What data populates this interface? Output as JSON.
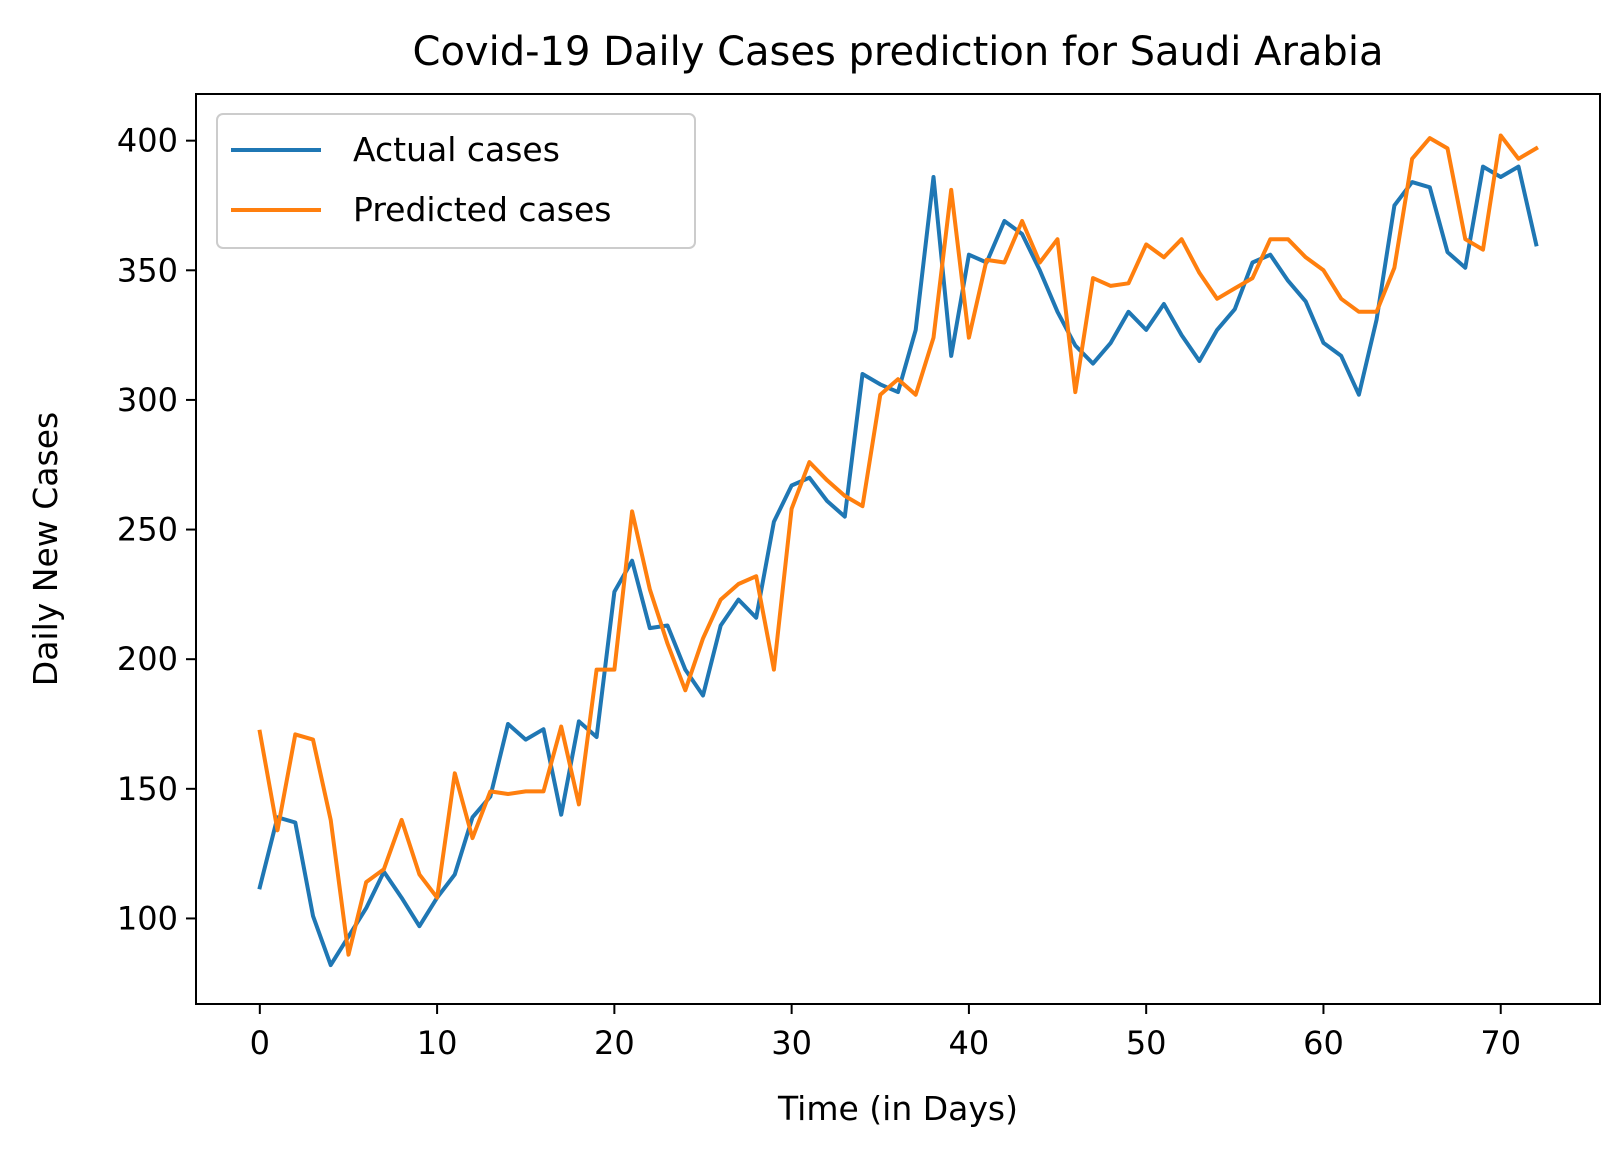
{
  "chart_data": {
    "type": "line",
    "title": "Covid-19 Daily Cases prediction for Saudi Arabia",
    "xlabel": "Time (in Days)",
    "ylabel": "Daily New Cases",
    "xlim": [
      -3.6,
      75.6
    ],
    "ylim": [
      67,
      418
    ],
    "xticks": [
      0,
      10,
      20,
      30,
      40,
      50,
      60,
      70
    ],
    "yticks": [
      100,
      150,
      200,
      250,
      300,
      350,
      400
    ],
    "xtick_labels": [
      "0",
      "10",
      "20",
      "30",
      "40",
      "50",
      "60",
      "70"
    ],
    "ytick_labels": [
      "100",
      "150",
      "200",
      "250",
      "300",
      "350",
      "400"
    ],
    "grid": false,
    "legend_position": "upper-left",
    "series": [
      {
        "name": "Actual cases",
        "color": "#1f77b4",
        "values": [
          112,
          139,
          137,
          101,
          82,
          93,
          104,
          118,
          108,
          97,
          108,
          117,
          139,
          147,
          175,
          169,
          173,
          140,
          176,
          170,
          226,
          238,
          212,
          213,
          196,
          186,
          213,
          223,
          216,
          253,
          267,
          270,
          261,
          255,
          310,
          306,
          303,
          327,
          386,
          317,
          356,
          353,
          369,
          364,
          350,
          334,
          321,
          314,
          322,
          334,
          327,
          337,
          325,
          315,
          327,
          335,
          353,
          356,
          346,
          338,
          322,
          317,
          302,
          331,
          375,
          384,
          382,
          357,
          351,
          390,
          386,
          390,
          360
        ]
      },
      {
        "name": "Predicted cases",
        "color": "#ff7f0e",
        "values": [
          172,
          134,
          171,
          169,
          138,
          86,
          114,
          119,
          138,
          117,
          108,
          156,
          131,
          149,
          148,
          149,
          149,
          174,
          144,
          196,
          196,
          257,
          227,
          206,
          188,
          208,
          223,
          229,
          232,
          196,
          258,
          276,
          269,
          263,
          259,
          302,
          308,
          302,
          324,
          381,
          324,
          354,
          353,
          369,
          353,
          362,
          303,
          347,
          344,
          345,
          360,
          355,
          362,
          349,
          339,
          343,
          347,
          362,
          362,
          355,
          350,
          339,
          334,
          334,
          351,
          393,
          401,
          397,
          362,
          358,
          402,
          393,
          397
        ]
      }
    ]
  }
}
